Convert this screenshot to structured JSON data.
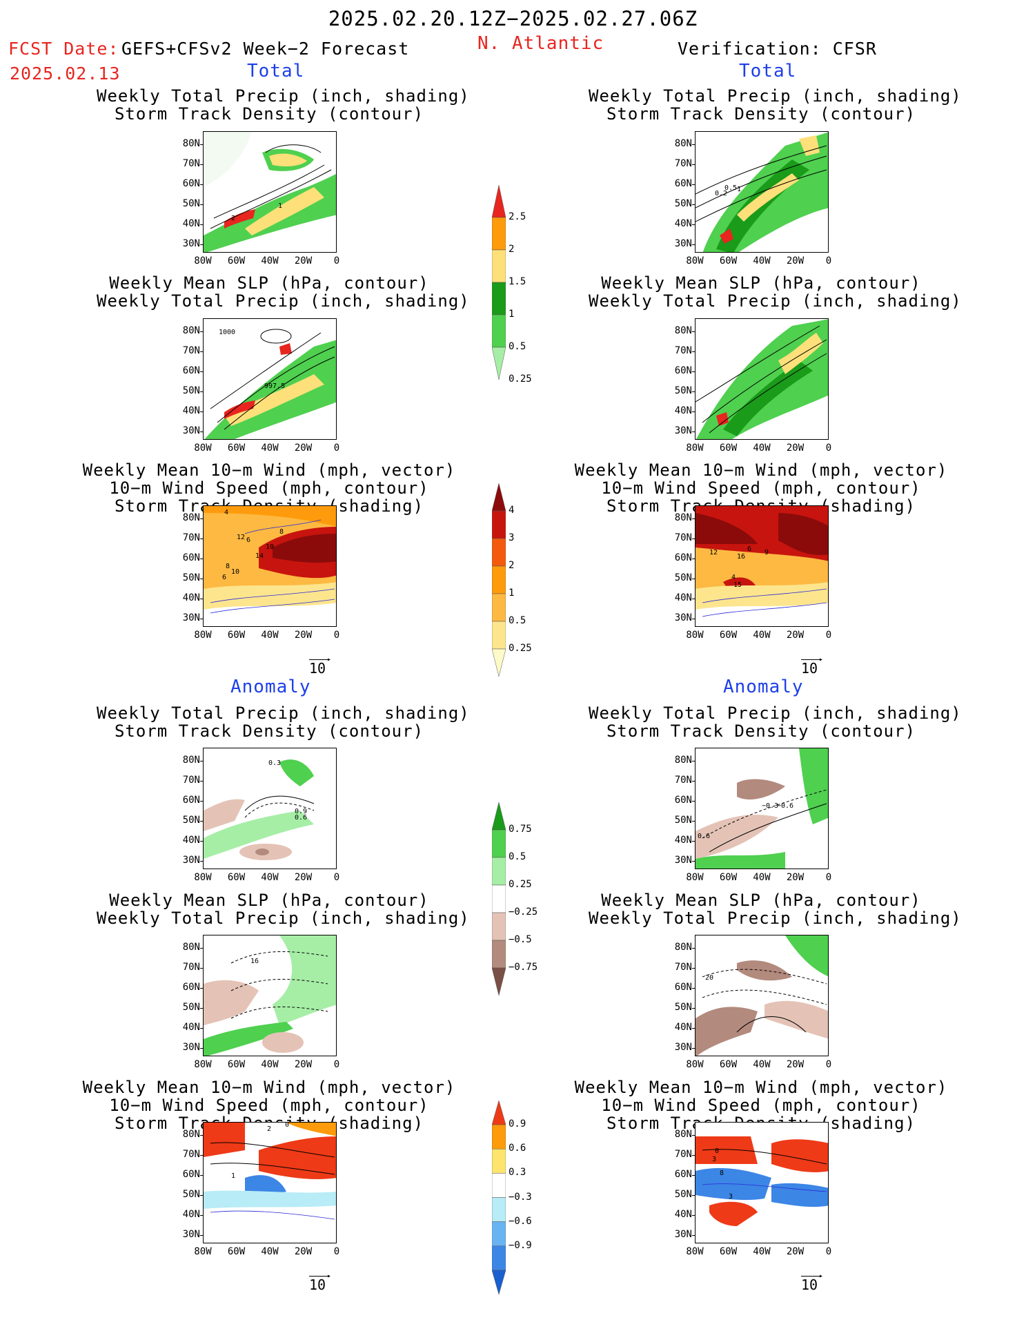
{
  "header": {
    "date_range": "2025.02.20.12Z−2025.02.27.06Z",
    "fcst_label": "FCST Date:",
    "model": "GEFS+CFSv2 Week−2 Forecast",
    "fcst_date": "2025.02.13",
    "region": "N. Atlantic",
    "verification": "Verification: CFSR"
  },
  "sections": {
    "total": "Total",
    "anomaly": "Anomaly"
  },
  "panel_titles": {
    "precip_storm": [
      "Weekly Total Precip (inch, shading)",
      "Storm Track Density (contour)"
    ],
    "slp_precip": [
      "Weekly Mean SLP (hPa, contour)",
      "Weekly Total Precip (inch, shading)"
    ],
    "wind_storm": [
      "Weekly Mean 10−m Wind (mph, vector)",
      "10−m Wind Speed (mph, contour)",
      "Storm Track Density (shading)"
    ]
  },
  "axes": {
    "lat_labels": [
      "80N",
      "70N",
      "60N",
      "50N",
      "40N",
      "30N"
    ],
    "lon_labels": [
      "80W",
      "60W",
      "40W",
      "20W",
      "0"
    ]
  },
  "vector_ref": "10",
  "colorbars": {
    "precip_total": {
      "labels": [
        "2.5",
        "2",
        "1.5",
        "1",
        "0.5",
        "0.25"
      ],
      "colors": [
        "#e8251f",
        "#fd9b0c",
        "#fde07a",
        "#1a9b1a",
        "#4fd04f",
        "#a6eea6"
      ]
    },
    "storm_total": {
      "labels": [
        "4",
        "3",
        "2",
        "1",
        "0.5",
        "0.25"
      ],
      "colors": [
        "#8b0b0b",
        "#c8140e",
        "#f35a0b",
        "#fd9b0c",
        "#fdb942",
        "#fde58e",
        "#fefac8"
      ]
    },
    "precip_anom": {
      "labels": [
        "0.75",
        "0.5",
        "0.25",
        "−0.25",
        "−0.5",
        "−0.75"
      ],
      "colors": [
        "#1a9b1a",
        "#4fd04f",
        "#a6eea6",
        "#ffffff",
        "#e4c3b6",
        "#b38a7e",
        "#7a4f45"
      ]
    },
    "storm_anom": {
      "labels": [
        "0.9",
        "0.6",
        "0.3",
        "−0.3",
        "−0.6",
        "−0.9"
      ],
      "colors": [
        "#ee3a17",
        "#fd9b0c",
        "#fde56d",
        "#ffffff",
        "#b8ecf7",
        "#68b3f2",
        "#3c86e6",
        "#1a5fd0"
      ]
    }
  },
  "contour_labels": {
    "fc_total_precip": [
      "2",
      "1"
    ],
    "vf_total_precip": [
      "0.2",
      "0.5",
      "1"
    ],
    "fc_total_slp": [
      "1000",
      "997.5"
    ],
    "fc_total_wind": [
      "4",
      "12",
      "6",
      "8",
      "10",
      "14",
      "8",
      "10",
      "6"
    ],
    "vf_total_wind": [
      "12",
      "6",
      "16",
      "9",
      "4",
      "15"
    ],
    "fc_anom_precip": [
      "0.3",
      "0.9",
      "0.6"
    ],
    "vf_anom_precip": [
      "−0.3",
      "−0.6",
      "0.6"
    ],
    "fc_anom_slp": [
      "16"
    ],
    "vf_anom_slp": [
      "20"
    ],
    "fc_anom_wind": [
      "2",
      "0",
      "1"
    ],
    "vf_anom_wind": [
      "0",
      "3",
      "8",
      "3"
    ]
  }
}
